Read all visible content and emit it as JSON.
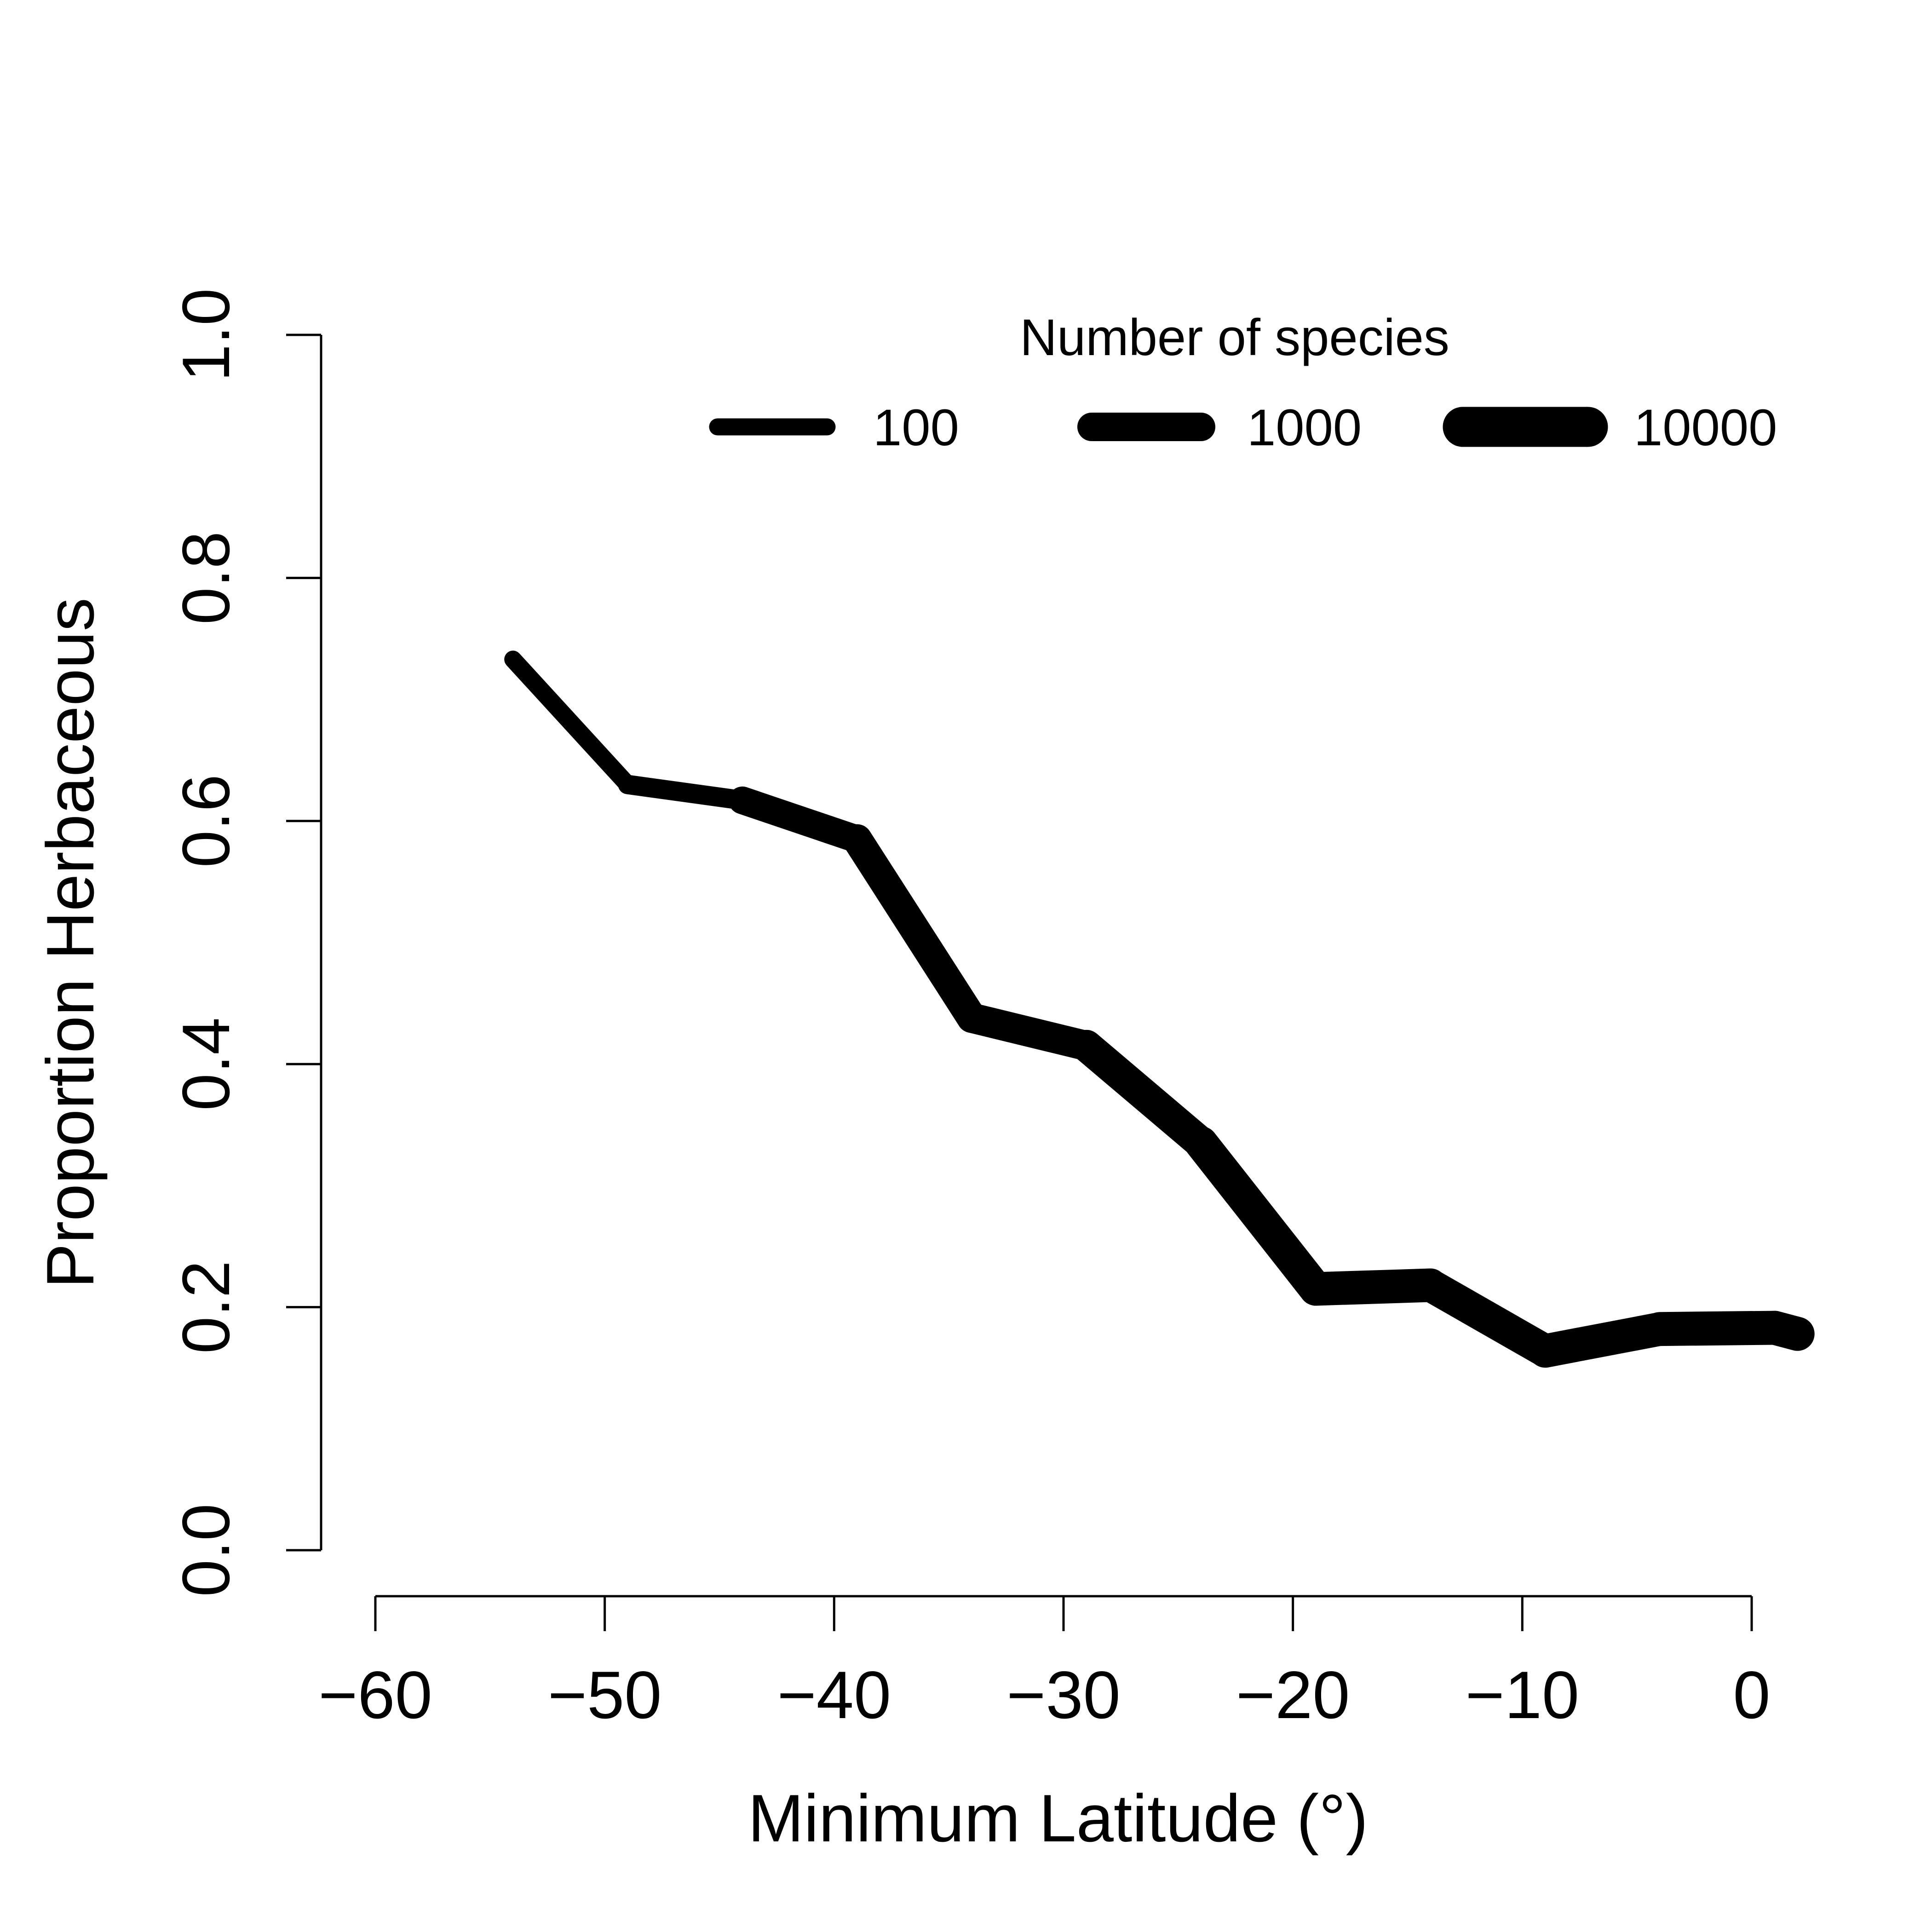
{
  "chart_data": {
    "type": "line",
    "title": "",
    "xlabel": "Minimum Latitude (°)",
    "ylabel": "Proportion Herbaceous",
    "xlim": [
      -60,
      0
    ],
    "ylim": [
      0.0,
      1.0
    ],
    "x_ticks": [
      "−60",
      "−50",
      "−40",
      "−30",
      "−20",
      "−10",
      "0"
    ],
    "x_tick_values": [
      -60,
      -50,
      -40,
      -30,
      -20,
      -10,
      0
    ],
    "y_ticks": [
      "0.0",
      "0.2",
      "0.4",
      "0.6",
      "0.8",
      "1.0"
    ],
    "y_tick_values": [
      0.0,
      0.2,
      0.4,
      0.6,
      0.8,
      1.0
    ],
    "grid": false,
    "color": "#000000",
    "legend": {
      "title": "Number of species",
      "position": "top-right",
      "entries": [
        {
          "label": "100",
          "species": 100
        },
        {
          "label": "1000",
          "species": 1000
        },
        {
          "label": "10000",
          "species": 10000
        }
      ]
    },
    "series": [
      {
        "x": [
          -54,
          -49,
          -44,
          -39,
          -34,
          -29,
          -24,
          -19,
          -14,
          -9,
          -4,
          1,
          2
        ],
        "y": [
          0.733,
          0.63,
          0.617,
          0.585,
          0.438,
          0.415,
          0.335,
          0.215,
          0.218,
          0.164,
          0.182,
          0.183,
          0.178
        ],
        "species": [
          100,
          120,
          200,
          1500,
          1200,
          1500,
          2500,
          3000,
          2500,
          2500,
          3000,
          3000,
          3000
        ]
      }
    ]
  }
}
